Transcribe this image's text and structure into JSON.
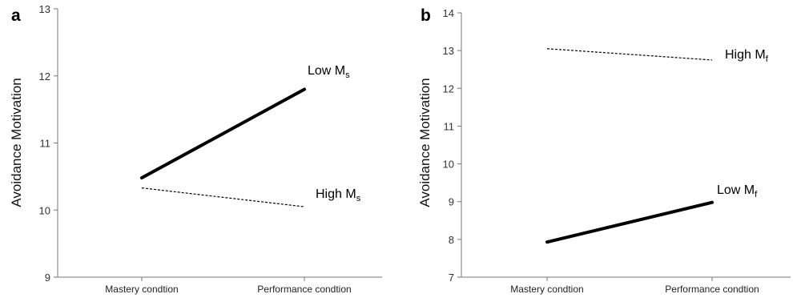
{
  "chart_data": [
    {
      "panel_label": "a",
      "type": "line",
      "categories": [
        "Mastery condtion",
        "Performance condtion"
      ],
      "ylabel": "Avoidance  Motivation",
      "ylim": [
        9,
        13
      ],
      "yticks": [
        9,
        10,
        11,
        12,
        13
      ],
      "series": [
        {
          "name": "Low M",
          "subscript": "s",
          "values": [
            10.48,
            11.8
          ],
          "style": "solid-thick",
          "color": "#000000"
        },
        {
          "name": "High M",
          "subscript": "s",
          "values": [
            10.33,
            10.05
          ],
          "style": "dashed",
          "color": "#000000"
        }
      ]
    },
    {
      "panel_label": "b",
      "type": "line",
      "categories": [
        "Mastery condtion",
        "Performance condtion"
      ],
      "ylabel": "Avoidance  Motivation",
      "ylim": [
        7,
        14
      ],
      "yticks": [
        7,
        8,
        9,
        10,
        11,
        12,
        13,
        14
      ],
      "series": [
        {
          "name": "High M",
          "subscript": "f",
          "values": [
            13.05,
            12.75
          ],
          "style": "dashed",
          "color": "#000000"
        },
        {
          "name": "Low M",
          "subscript": "f",
          "values": [
            7.93,
            8.98
          ],
          "style": "solid-thick",
          "color": "#000000"
        }
      ]
    }
  ]
}
